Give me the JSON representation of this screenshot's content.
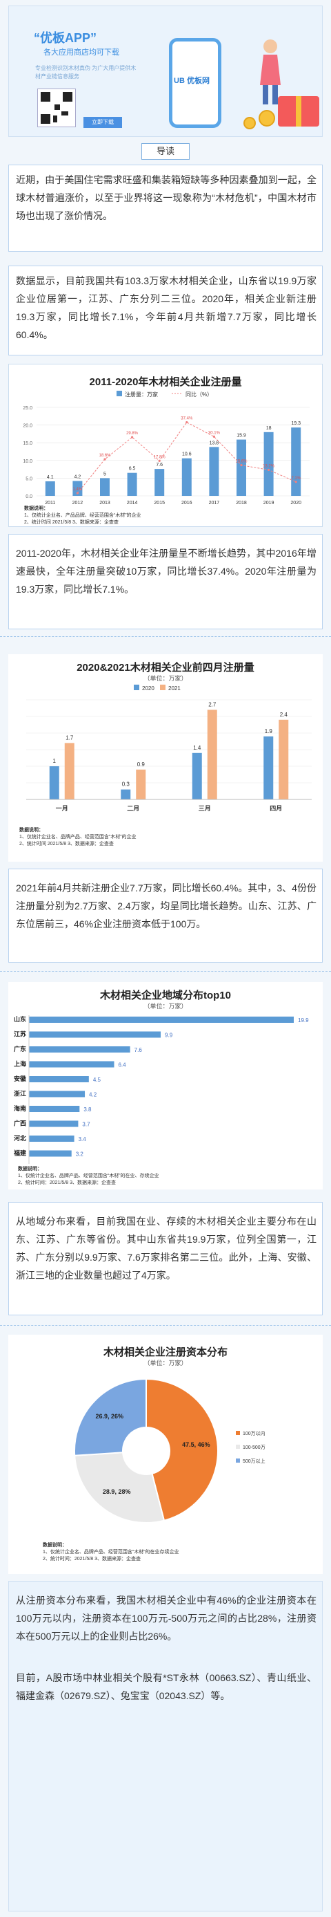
{
  "banner": {
    "app_title": "“优板APP”",
    "app_subtitle": "各大应用商店均可下载",
    "slogan": "专业检测识别木材真伪 为广大用户提供木材产业链信息服务",
    "download_button": "立即下载",
    "logo": "UB 优板网"
  },
  "guide_label": "导读",
  "para1": "近期，由于美国住宅需求旺盛和集装箱短缺等多种因素叠加到一起，全球木材普遍涨价，以至于业界将这一现象称为“木材危机”，中国木材市场也出现了涨价情况。",
  "para2": "数据显示，目前我国共有103.3万家木材相关企业，山东省以19.9万家企业位居第一，江苏、广东分列二三位。2020年，相关企业新注册19.3万家，同比增长7.1%，今年前4月共新增7.7万家，同比增长60.4%。",
  "para3": "2011-2020年，木材相关企业年注册量呈不断增长趋势，其中2016年增速最快，全年注册量突破10万家，同比增长37.4%。2020年注册量为19.3万家，同比增长7.1%。",
  "para4": "2021年前4月共新注册企业7.7万家，同比增长60.4%。其中，3、4份份注册量分别为2.7万家、2.4万家，均呈同比增长趋势。山东、江苏、广东位居前三，46%企业注册资本低于100万。",
  "para5": "从地域分布来看，目前我国在业、存续的木材相关企业主要分布在山东、江苏、广东等省份。其中山东省共19.9万家，位列全国第一，江苏、广东分别以9.9万家、7.6万家排名第二三位。此外，上海、安徽、浙江三地的企业数量也超过了4万家。",
  "para6": "从注册资本分布来看，我国木材相关企业中有46%的企业注册资本在100万元以内，注册资本在100万元-500万元之间的占比28%，注册资本在500万元以上的企业则占比26%。",
  "para7": "目前，A股市场中林业相关个股有*ST永林（00663.SZ）、青山纸业、福建金森（02679.SZ）、兔宝宝（02043.SZ）等。",
  "chart1": {
    "title": "2011-2020年木材相关企业注册量",
    "legend_bar": "注册量：万家",
    "legend_line": "同比（%）",
    "notes": [
      "数据说明：",
      "1、仅统计企业名、产品品牌、经营范围含“木材”的企业",
      "2、统计时间 2021/5/8    3、数据来源：企查查"
    ]
  },
  "chart2": {
    "title": "2020&2021木材相关企业前四月注册量",
    "subtitle": "（单位：万家）",
    "legend_2020": "2020",
    "legend_2021": "2021",
    "notes": [
      "数据说明：",
      "1、仅统计企业名、品牌产品、经营范围含“木材”的企业",
      "2、统计时间  2021/5/8        3、数据来源：企查查"
    ]
  },
  "chart3": {
    "title": "木材相关企业地域分布top10",
    "subtitle": "（单位：万家）",
    "notes": [
      "数据说明：",
      "1、仅统计企业名、品牌产品、经营范围含“木材”的在业、存续企业",
      "2、统计时间：2021/5/8        3、数据来源：企查查"
    ]
  },
  "chart4": {
    "title": "木材相关企业注册资本分布",
    "subtitle": "（单位：万家）",
    "notes": [
      "数据说明：",
      "1、仅统计企业名、品牌产品、经营范围含“木材”的在业存续企业",
      "2、统计时间：2021/5/8          3、数据来源：企查查"
    ]
  },
  "chart_data": [
    {
      "type": "bar",
      "title": "2011-2020年木材相关企业注册量",
      "categories": [
        "2011",
        "2012",
        "2013",
        "2014",
        "2015",
        "2016",
        "2017",
        "2018",
        "2019",
        "2020"
      ],
      "series": [
        {
          "name": "注册量：万家",
          "values": [
            4.1,
            4.2,
            5.0,
            6.5,
            7.6,
            10.6,
            13.8,
            15.9,
            18.0,
            19.3
          ]
        },
        {
          "name": "同比（%）",
          "type": "line",
          "values": [
            null,
            1.4,
            18.6,
            29.8,
            17.8,
            37.4,
            30.1,
            15.6,
            13.2,
            7.1
          ]
        }
      ],
      "ylim": [
        0,
        25
      ],
      "grid": true,
      "legend": "top"
    },
    {
      "type": "bar",
      "title": "2020&2021木材相关企业前四月注册量",
      "categories": [
        "一月",
        "二月",
        "三月",
        "四月"
      ],
      "series": [
        {
          "name": "2020",
          "values": [
            1.0,
            0.3,
            1.4,
            1.9
          ]
        },
        {
          "name": "2021",
          "values": [
            1.7,
            0.9,
            2.7,
            2.4
          ]
        }
      ],
      "legend": "top"
    },
    {
      "type": "bar",
      "title": "木材相关企业地域分布top10",
      "categories": [
        "山东",
        "江苏",
        "广东",
        "上海",
        "安徽",
        "浙江",
        "海南",
        "广西",
        "河北",
        "福建"
      ],
      "values": [
        19.9,
        9.9,
        7.6,
        6.4,
        4.5,
        4.2,
        3.8,
        3.7,
        3.4,
        3.2
      ]
    },
    {
      "type": "pie",
      "title": "木材相关企业注册资本分布",
      "categories": [
        "100万以内",
        "100-500万",
        "500万以上"
      ],
      "values": [
        47.5,
        28.9,
        26.9
      ],
      "labels": [
        "47.5, 46%",
        "28.9, 28%",
        "26.9, 26%"
      ],
      "colors": [
        "#ee7d31",
        "#e9e9e9",
        "#7aa6e0"
      ],
      "legend": "right"
    }
  ]
}
